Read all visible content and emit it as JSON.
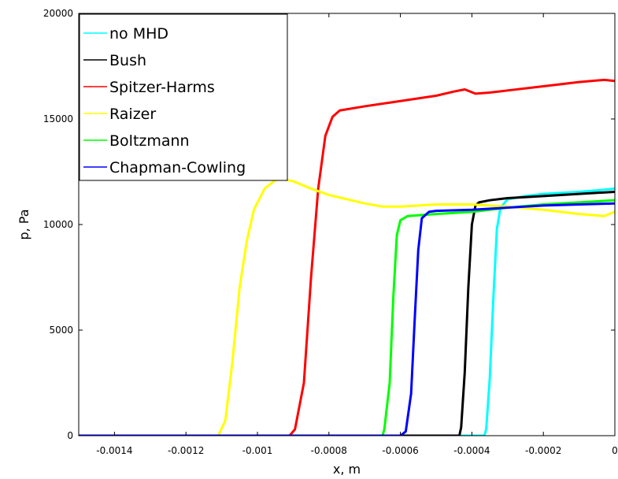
{
  "chart_data": {
    "type": "line",
    "xlabel": "x, m",
    "ylabel": "p, Pa",
    "xlim": [
      -0.0015,
      0
    ],
    "ylim": [
      0,
      20000
    ],
    "x_ticks": [
      -0.0014,
      -0.0012,
      -0.001,
      -0.0008,
      -0.0006,
      -0.0004,
      -0.0002,
      0
    ],
    "x_tick_labels": [
      "-0.0014",
      "-0.0012",
      "-0.001",
      "-0.0008",
      "-0.0006",
      "-0.0004",
      "-0.0002",
      "0"
    ],
    "y_ticks": [
      0,
      5000,
      10000,
      15000,
      20000
    ],
    "y_tick_labels": [
      "0",
      "5000",
      "10000",
      "15000",
      "20000"
    ],
    "grid": false,
    "legend_position": "top-left",
    "series": [
      {
        "name": "no MHD",
        "color": "#00ffff",
        "points": [
          [
            -0.0015,
            0
          ],
          [
            -0.000365,
            0
          ],
          [
            -0.00036,
            300
          ],
          [
            -0.00035,
            2700
          ],
          [
            -0.00034,
            6500
          ],
          [
            -0.00033,
            9800
          ],
          [
            -0.00032,
            10800
          ],
          [
            -0.0003,
            11200
          ],
          [
            -0.00025,
            11350
          ],
          [
            -0.0002,
            11450
          ],
          [
            -0.0001,
            11550
          ],
          [
            -5e-05,
            11620
          ],
          [
            0,
            11700
          ]
        ]
      },
      {
        "name": "Bush",
        "color": "#000000",
        "points": [
          [
            -0.0015,
            0
          ],
          [
            -0.000435,
            0
          ],
          [
            -0.00043,
            400
          ],
          [
            -0.00042,
            3000
          ],
          [
            -0.00041,
            7000
          ],
          [
            -0.0004,
            10000
          ],
          [
            -0.00039,
            10900
          ],
          [
            -0.00038,
            11050
          ],
          [
            -0.00035,
            11150
          ],
          [
            -0.0003,
            11250
          ],
          [
            -0.0002,
            11350
          ],
          [
            -0.0001,
            11450
          ],
          [
            0,
            11550
          ]
        ]
      },
      {
        "name": "Spitzer-Harms",
        "color": "#ff0000",
        "points": [
          [
            -0.0015,
            0
          ],
          [
            -0.00091,
            0
          ],
          [
            -0.000895,
            300
          ],
          [
            -0.00087,
            2500
          ],
          [
            -0.00085,
            7500
          ],
          [
            -0.00083,
            11700
          ],
          [
            -0.00081,
            14200
          ],
          [
            -0.00079,
            15100
          ],
          [
            -0.00077,
            15400
          ],
          [
            -0.0007,
            15600
          ],
          [
            -0.0006,
            15850
          ],
          [
            -0.0005,
            16100
          ],
          [
            -0.00045,
            16300
          ],
          [
            -0.00042,
            16400
          ],
          [
            -0.00039,
            16200
          ],
          [
            -0.00035,
            16250
          ],
          [
            -0.0003,
            16350
          ],
          [
            -0.0002,
            16550
          ],
          [
            -0.0001,
            16750
          ],
          [
            -3e-05,
            16850
          ],
          [
            0,
            16800
          ]
        ]
      },
      {
        "name": "Raizer",
        "color": "#ffff00",
        "points": [
          [
            -0.0015,
            0
          ],
          [
            -0.00111,
            0
          ],
          [
            -0.00109,
            700
          ],
          [
            -0.00107,
            3500
          ],
          [
            -0.00105,
            7000
          ],
          [
            -0.00103,
            9200
          ],
          [
            -0.00101,
            10700
          ],
          [
            -0.00098,
            11700
          ],
          [
            -0.00095,
            12100
          ],
          [
            -0.00093,
            12150
          ],
          [
            -0.0009,
            12050
          ],
          [
            -0.00085,
            11700
          ],
          [
            -0.0008,
            11400
          ],
          [
            -0.0007,
            11000
          ],
          [
            -0.00065,
            10850
          ],
          [
            -0.0006,
            10850
          ],
          [
            -0.0005,
            10950
          ],
          [
            -0.0004,
            10950
          ],
          [
            -0.0003,
            10850
          ],
          [
            -0.0002,
            10700
          ],
          [
            -0.0001,
            10500
          ],
          [
            -3e-05,
            10400
          ],
          [
            0,
            10600
          ]
        ]
      },
      {
        "name": "Boltzmann",
        "color": "#00ff00",
        "points": [
          [
            -0.0015,
            0
          ],
          [
            -0.00065,
            0
          ],
          [
            -0.000645,
            300
          ],
          [
            -0.00063,
            2500
          ],
          [
            -0.00062,
            6500
          ],
          [
            -0.00061,
            9500
          ],
          [
            -0.0006,
            10200
          ],
          [
            -0.00058,
            10400
          ],
          [
            -0.0005,
            10500
          ],
          [
            -0.0004,
            10600
          ],
          [
            -0.0003,
            10800
          ],
          [
            -0.0002,
            10950
          ],
          [
            -0.0001,
            11050
          ],
          [
            0,
            11150
          ]
        ]
      },
      {
        "name": "Chapman-Cowling",
        "color": "#0000ff",
        "points": [
          [
            -0.0015,
            0
          ],
          [
            -0.0006,
            0
          ],
          [
            -0.000585,
            200
          ],
          [
            -0.00057,
            2000
          ],
          [
            -0.00056,
            5500
          ],
          [
            -0.00055,
            8800
          ],
          [
            -0.00054,
            10300
          ],
          [
            -0.00052,
            10600
          ],
          [
            -0.0005,
            10650
          ],
          [
            -0.0004,
            10700
          ],
          [
            -0.0003,
            10800
          ],
          [
            -0.0002,
            10900
          ],
          [
            -0.0001,
            10950
          ],
          [
            0,
            11000
          ]
        ]
      }
    ]
  }
}
